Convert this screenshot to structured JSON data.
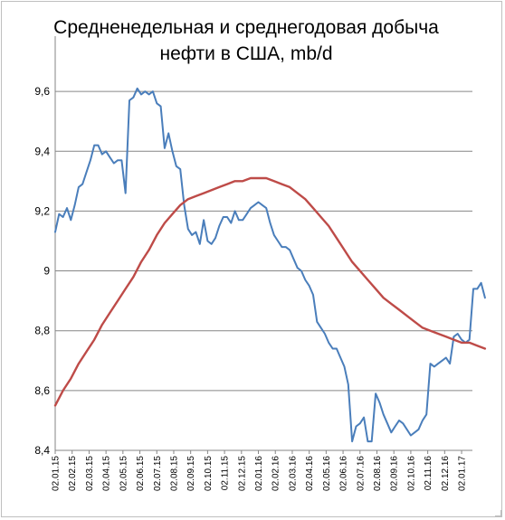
{
  "chart_data": {
    "type": "line",
    "title_lines": [
      "Средненедельная и среднегодовая  добыча",
      "нефти в США, mb/d"
    ],
    "xlabel": "",
    "ylabel": "",
    "ylim": [
      8.4,
      9.7
    ],
    "y_ticks": [
      8.4,
      8.6,
      8.8,
      9.0,
      9.2,
      9.4,
      9.6
    ],
    "y_tick_labels": [
      "8,4",
      "8,6",
      "8,8",
      "9",
      "9,2",
      "9,4",
      "9,6"
    ],
    "grid": true,
    "legend": "none",
    "x_tick_labels": [
      "02.01.15",
      "02.02.15",
      "02.03.15",
      "02.04.15",
      "02.05.15",
      "02.06.15",
      "02.07.15",
      "02.08.15",
      "02.09.15",
      "02.10.15",
      "02.11.15",
      "02.12.15",
      "02.01.16",
      "02.02.16",
      "02.03.16",
      "02.04.16",
      "02.05.16",
      "02.06.16",
      "02.07.16",
      "02.08.16",
      "02.09.16",
      "02.10.16",
      "02.11.16",
      "02.12.16",
      "02.01.17"
    ],
    "series": [
      {
        "color": "#4a7ebb",
        "week_offsets": [
          0,
          1,
          2,
          3,
          4,
          5,
          6,
          7,
          8,
          9,
          10,
          11,
          12,
          13,
          14,
          15,
          16,
          17,
          18,
          19,
          20,
          21,
          22,
          23,
          24,
          25,
          26,
          27,
          28,
          29,
          30,
          31,
          32,
          33,
          34,
          35,
          36,
          37,
          38,
          39,
          40,
          41,
          42,
          43,
          44,
          45,
          46,
          47,
          48,
          49,
          50,
          51,
          52,
          53,
          54,
          55,
          56,
          57,
          58,
          59,
          60,
          61,
          62,
          63,
          64,
          65,
          66,
          67,
          68,
          69,
          70,
          71,
          72,
          73,
          74,
          75,
          76,
          77,
          78,
          79,
          80,
          81,
          82,
          83,
          84,
          85,
          86,
          87,
          88,
          89,
          90,
          91,
          92,
          93,
          94,
          95,
          96,
          97,
          98,
          99,
          100,
          101,
          102,
          103,
          104,
          105,
          106,
          107,
          108,
          109,
          110
        ],
        "values": [
          9.13,
          9.19,
          9.18,
          9.21,
          9.17,
          9.22,
          9.28,
          9.29,
          9.33,
          9.37,
          9.42,
          9.42,
          9.39,
          9.4,
          9.38,
          9.36,
          9.37,
          9.37,
          9.26,
          9.57,
          9.58,
          9.61,
          9.59,
          9.6,
          9.59,
          9.6,
          9.56,
          9.55,
          9.41,
          9.46,
          9.4,
          9.35,
          9.34,
          9.22,
          9.14,
          9.12,
          9.13,
          9.09,
          9.17,
          9.1,
          9.09,
          9.11,
          9.15,
          9.18,
          9.18,
          9.16,
          9.2,
          9.17,
          9.17,
          9.19,
          9.21,
          9.22,
          9.23,
          9.22,
          9.21,
          9.16,
          9.12,
          9.1,
          9.08,
          9.08,
          9.07,
          9.04,
          9.01,
          9.0,
          8.97,
          8.95,
          8.92,
          8.83,
          8.81,
          8.79,
          8.76,
          8.74,
          8.74,
          8.71,
          8.68,
          8.62,
          8.43,
          8.48,
          8.49,
          8.51,
          8.43,
          8.43,
          8.59,
          8.56,
          8.52,
          8.49,
          8.46,
          8.48,
          8.5,
          8.49,
          8.47,
          8.45,
          8.46,
          8.47,
          8.5,
          8.52,
          8.69,
          8.68,
          8.69,
          8.7,
          8.71,
          8.69,
          8.78,
          8.79,
          8.77,
          8.76,
          8.77,
          8.94,
          8.94,
          8.96,
          8.91
        ]
      },
      {
        "color": "#be4b48",
        "week_offsets": [
          0,
          2,
          4,
          6,
          8,
          10,
          12,
          14,
          16,
          18,
          20,
          22,
          24,
          26,
          28,
          30,
          32,
          34,
          36,
          38,
          40,
          42,
          44,
          46,
          48,
          50,
          52,
          54,
          56,
          58,
          60,
          62,
          64,
          66,
          68,
          70,
          72,
          74,
          76,
          78,
          80,
          82,
          84,
          86,
          88,
          90,
          92,
          94,
          96,
          98,
          100,
          102,
          104,
          106,
          108,
          110
        ],
        "values": [
          8.55,
          8.6,
          8.64,
          8.69,
          8.73,
          8.77,
          8.82,
          8.86,
          8.9,
          8.94,
          8.98,
          9.03,
          9.07,
          9.12,
          9.16,
          9.19,
          9.22,
          9.24,
          9.25,
          9.26,
          9.27,
          9.28,
          9.29,
          9.3,
          9.3,
          9.31,
          9.31,
          9.31,
          9.3,
          9.29,
          9.28,
          9.26,
          9.24,
          9.21,
          9.18,
          9.15,
          9.11,
          9.07,
          9.03,
          9.0,
          8.97,
          8.94,
          8.91,
          8.89,
          8.87,
          8.85,
          8.83,
          8.81,
          8.8,
          8.79,
          8.78,
          8.77,
          8.76,
          8.76,
          8.75,
          8.74
        ]
      }
    ]
  }
}
